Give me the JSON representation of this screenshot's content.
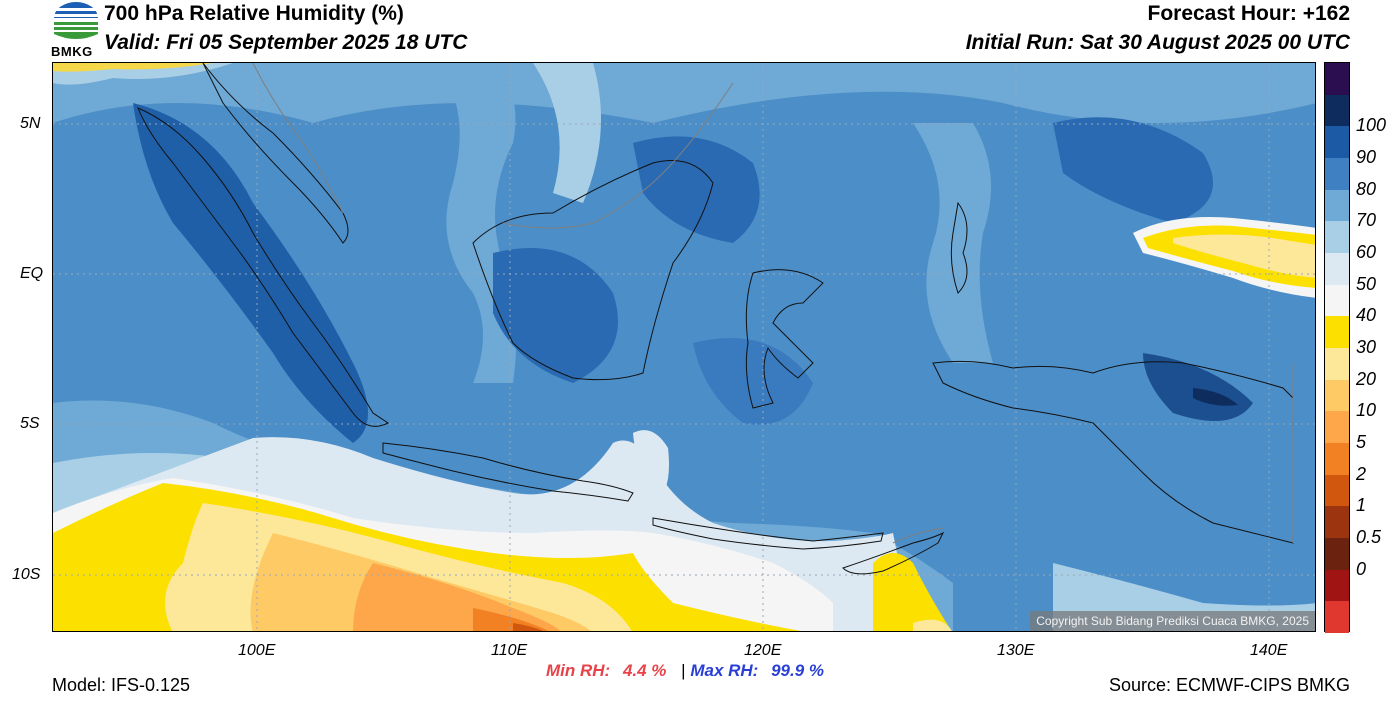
{
  "logo": {
    "text": "BMKG"
  },
  "header": {
    "title": "700 hPa Relative Humidity (%)",
    "valid": "Valid: Fri 05 September 2025 18 UTC",
    "forecast_hour": "Forecast Hour: +162",
    "initial_run": "Initial Run: Sat 30 August 2025 00 UTC"
  },
  "map": {
    "copyright": "Copyright Sub Bidang Prediksi Cuaca BMKG, 2025",
    "lat_labels": [
      "5N",
      "EQ",
      "5S",
      "10S"
    ],
    "lon_labels": [
      "100E",
      "110E",
      "120E",
      "130E",
      "140E"
    ]
  },
  "colorbar": {
    "labels": [
      "100",
      "90",
      "80",
      "70",
      "60",
      "50",
      "40",
      "30",
      "20",
      "10",
      "5",
      "2",
      "1",
      "0.5",
      "0"
    ],
    "colors": [
      "#2a0e4f",
      "#0e2d5e",
      "#1c5aa6",
      "#3f80c2",
      "#6fa9d5",
      "#a9cfe6",
      "#dde9f2",
      "#f5f5f5",
      "#fce000",
      "#fde89a",
      "#fdca66",
      "#fda64a",
      "#f28124",
      "#d2570e",
      "#9c3410",
      "#6b2310",
      "#a01414",
      "#e0382e"
    ]
  },
  "footer": {
    "model": "Model: IFS-0.125",
    "min_label": "Min RH:",
    "min_value": "4.4 %",
    "separator": "|",
    "max_label": "Max RH:",
    "max_value": "99.9 %",
    "source": "Source: ECMWF-CIPS BMKG"
  }
}
